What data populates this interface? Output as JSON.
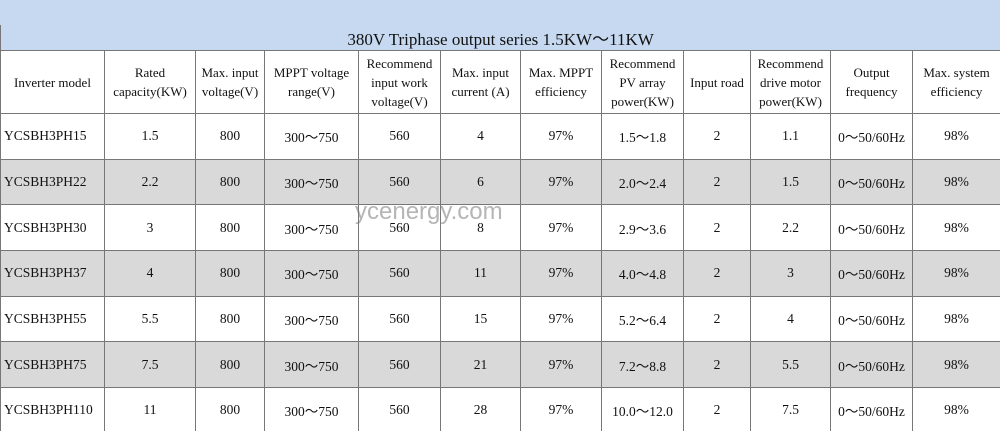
{
  "title": "380V Triphase output series 1.5KW～11KW",
  "watermark": "ycenergy.com",
  "table": {
    "header": [
      [
        "Inverter model"
      ],
      [
        "Rated",
        "capacity(KW)"
      ],
      [
        "Max. input",
        "voltage(V)"
      ],
      [
        "MPPT voltage",
        "range(V)"
      ],
      [
        "Recommend",
        "input work",
        "voltage(V)"
      ],
      [
        "Max. input",
        "current (A)"
      ],
      [
        "Max. MPPT",
        "efficiency"
      ],
      [
        "Recommend",
        "PV array",
        "power(KW)"
      ],
      [
        "Input road"
      ],
      [
        "Recommend",
        "drive motor",
        "power(KW)"
      ],
      [
        "Output",
        "frequency"
      ],
      [
        "Max. system",
        "efficiency"
      ]
    ],
    "rows": [
      [
        "YCSBH3PH15",
        "1.5",
        "800",
        "300～750",
        "560",
        "4",
        "97%",
        "1.5～1.8",
        "2",
        "1.1",
        "0～50/60Hz",
        "98%"
      ],
      [
        "YCSBH3PH22",
        "2.2",
        "800",
        "300～750",
        "560",
        "6",
        "97%",
        "2.0～2.4",
        "2",
        "1.5",
        "0～50/60Hz",
        "98%"
      ],
      [
        "YCSBH3PH30",
        "3",
        "800",
        "300～750",
        "560",
        "8",
        "97%",
        "2.9～3.6",
        "2",
        "2.2",
        "0～50/60Hz",
        "98%"
      ],
      [
        "YCSBH3PH37",
        "4",
        "800",
        "300～750",
        "560",
        "11",
        "97%",
        "4.0～4.8",
        "2",
        "3",
        "0～50/60Hz",
        "98%"
      ],
      [
        "YCSBH3PH55",
        "5.5",
        "800",
        "300～750",
        "560",
        "15",
        "97%",
        "5.2～6.4",
        "2",
        "4",
        "0～50/60Hz",
        "98%"
      ],
      [
        "YCSBH3PH75",
        "7.5",
        "800",
        "300～750",
        "560",
        "21",
        "97%",
        "7.2～8.8",
        "2",
        "5.5",
        "0～50/60Hz",
        "98%"
      ],
      [
        "YCSBH3PH110",
        "11",
        "800",
        "300～750",
        "560",
        "28",
        "97%",
        "10.0～12.0",
        "2",
        "7.5",
        "0～50/60Hz",
        "98%"
      ]
    ]
  }
}
